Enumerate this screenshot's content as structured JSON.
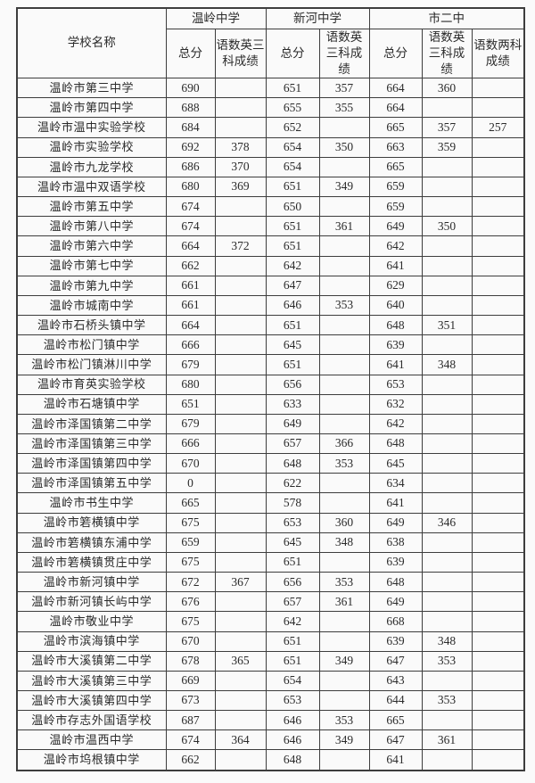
{
  "page": {
    "background": "#fafafa",
    "border_color": "#3d3d3d",
    "text_color": "#2b2b2b"
  },
  "table": {
    "name_header": "学校名称",
    "groups": [
      {
        "label": "温岭中学",
        "cols": [
          "总分",
          "语数英三科成绩"
        ]
      },
      {
        "label": "新河中学",
        "cols": [
          "总分",
          "语数英三科成绩"
        ]
      },
      {
        "label": "市二中",
        "cols": [
          "总分",
          "语数英三科成绩",
          "语数两科成绩"
        ]
      }
    ],
    "rows": [
      {
        "school": "温岭市第三中学",
        "scores": [
          "690",
          "",
          "651",
          "357",
          "664",
          "360",
          ""
        ]
      },
      {
        "school": "温岭市第四中学",
        "scores": [
          "688",
          "",
          "655",
          "355",
          "664",
          "",
          ""
        ]
      },
      {
        "school": "温岭市温中实验学校",
        "scores": [
          "684",
          "",
          "652",
          "",
          "665",
          "357",
          "257"
        ]
      },
      {
        "school": "温岭市实验学校",
        "scores": [
          "692",
          "378",
          "654",
          "350",
          "663",
          "359",
          ""
        ]
      },
      {
        "school": "温岭市九龙学校",
        "scores": [
          "686",
          "370",
          "654",
          "",
          "665",
          "",
          ""
        ]
      },
      {
        "school": "温岭市温中双语学校",
        "scores": [
          "680",
          "369",
          "651",
          "349",
          "659",
          "",
          ""
        ]
      },
      {
        "school": "温岭市第五中学",
        "scores": [
          "674",
          "",
          "650",
          "",
          "659",
          "",
          ""
        ]
      },
      {
        "school": "温岭市第八中学",
        "scores": [
          "674",
          "",
          "651",
          "361",
          "649",
          "350",
          ""
        ]
      },
      {
        "school": "温岭市第六中学",
        "scores": [
          "664",
          "372",
          "651",
          "",
          "642",
          "",
          ""
        ]
      },
      {
        "school": "温岭市第七中学",
        "scores": [
          "662",
          "",
          "642",
          "",
          "641",
          "",
          ""
        ]
      },
      {
        "school": "温岭市第九中学",
        "scores": [
          "661",
          "",
          "647",
          "",
          "629",
          "",
          ""
        ]
      },
      {
        "school": "温岭市城南中学",
        "scores": [
          "661",
          "",
          "646",
          "353",
          "640",
          "",
          ""
        ]
      },
      {
        "school": "温岭市石桥头镇中学",
        "scores": [
          "664",
          "",
          "651",
          "",
          "648",
          "351",
          ""
        ]
      },
      {
        "school": "温岭市松门镇中学",
        "scores": [
          "666",
          "",
          "645",
          "",
          "639",
          "",
          ""
        ]
      },
      {
        "school": "温岭市松门镇淋川中学",
        "scores": [
          "679",
          "",
          "651",
          "",
          "641",
          "348",
          ""
        ]
      },
      {
        "school": "温岭市育英实验学校",
        "scores": [
          "680",
          "",
          "656",
          "",
          "653",
          "",
          ""
        ]
      },
      {
        "school": "温岭市石塘镇中学",
        "scores": [
          "651",
          "",
          "633",
          "",
          "632",
          "",
          ""
        ]
      },
      {
        "school": "温岭市泽国镇第二中学",
        "scores": [
          "679",
          "",
          "649",
          "",
          "642",
          "",
          ""
        ]
      },
      {
        "school": "温岭市泽国镇第三中学",
        "scores": [
          "666",
          "",
          "657",
          "366",
          "648",
          "",
          ""
        ]
      },
      {
        "school": "温岭市泽国镇第四中学",
        "scores": [
          "670",
          "",
          "648",
          "353",
          "645",
          "",
          ""
        ]
      },
      {
        "school": "温岭市泽国镇第五中学",
        "scores": [
          "0",
          "",
          "622",
          "",
          "634",
          "",
          ""
        ]
      },
      {
        "school": "温岭市书生中学",
        "scores": [
          "665",
          "",
          "578",
          "",
          "641",
          "",
          ""
        ]
      },
      {
        "school": "温岭市箬横镇中学",
        "scores": [
          "675",
          "",
          "653",
          "360",
          "649",
          "346",
          ""
        ]
      },
      {
        "school": "温岭市箬横镇东浦中学",
        "scores": [
          "659",
          "",
          "645",
          "348",
          "638",
          "",
          ""
        ]
      },
      {
        "school": "温岭市箬横镇贯庄中学",
        "scores": [
          "675",
          "",
          "651",
          "",
          "639",
          "",
          ""
        ]
      },
      {
        "school": "温岭市新河镇中学",
        "scores": [
          "672",
          "367",
          "656",
          "353",
          "648",
          "",
          ""
        ]
      },
      {
        "school": "温岭市新河镇长屿中学",
        "scores": [
          "676",
          "",
          "657",
          "361",
          "649",
          "",
          ""
        ]
      },
      {
        "school": "温岭市敬业中学",
        "scores": [
          "675",
          "",
          "642",
          "",
          "668",
          "",
          ""
        ]
      },
      {
        "school": "温岭市滨海镇中学",
        "scores": [
          "670",
          "",
          "651",
          "",
          "639",
          "348",
          ""
        ]
      },
      {
        "school": "温岭市大溪镇第二中学",
        "scores": [
          "678",
          "365",
          "651",
          "349",
          "647",
          "353",
          ""
        ]
      },
      {
        "school": "温岭市大溪镇第三中学",
        "scores": [
          "669",
          "",
          "654",
          "",
          "643",
          "",
          ""
        ]
      },
      {
        "school": "温岭市大溪镇第四中学",
        "scores": [
          "673",
          "",
          "653",
          "",
          "644",
          "353",
          ""
        ]
      },
      {
        "school": "温岭市存志外国语学校",
        "scores": [
          "687",
          "",
          "646",
          "353",
          "665",
          "",
          ""
        ]
      },
      {
        "school": "温岭市温西中学",
        "scores": [
          "674",
          "364",
          "646",
          "349",
          "647",
          "361",
          ""
        ]
      },
      {
        "school": "温岭市坞根镇中学",
        "scores": [
          "662",
          "",
          "648",
          "",
          "641",
          "",
          ""
        ]
      }
    ]
  }
}
